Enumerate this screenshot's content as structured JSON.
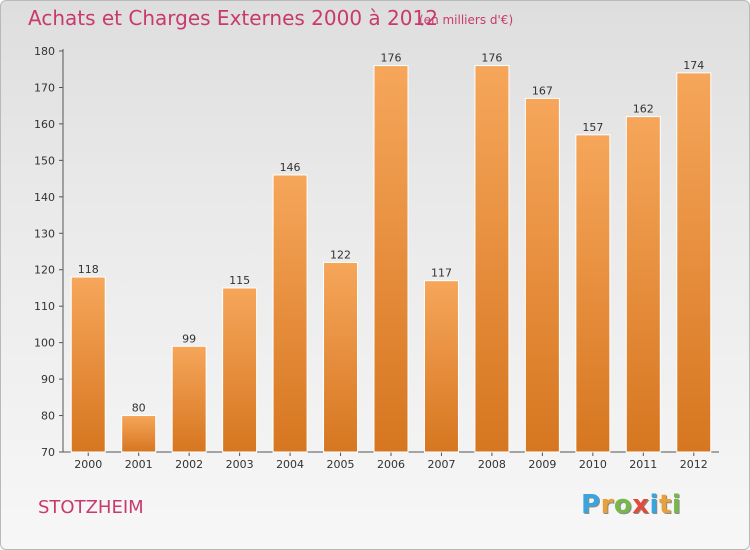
{
  "title": "Achats et Charges Externes 2000 à 2012",
  "subtitle": "(en milliers d'€)",
  "city": "STOTZHEIM",
  "logo": {
    "letters": [
      "P",
      "r",
      "o",
      "x",
      "i",
      "t",
      "i"
    ],
    "colors": [
      "#3aa4dc",
      "#e8a13a",
      "#78b84a",
      "#e04b3b",
      "#3aa4dc",
      "#e8a13a",
      "#78b84a"
    ]
  },
  "colors": {
    "title": "#c83a6e",
    "bar_top": "#f6a65a",
    "bar_bottom": "#d67620",
    "axis": "#555555"
  },
  "chart_data": {
    "type": "bar",
    "categories": [
      "2000",
      "2001",
      "2002",
      "2003",
      "2004",
      "2005",
      "2006",
      "2007",
      "2008",
      "2009",
      "2010",
      "2011",
      "2012"
    ],
    "values": [
      118,
      80,
      99,
      115,
      146,
      122,
      176,
      117,
      176,
      167,
      157,
      162,
      174
    ],
    "ylim": [
      70,
      180
    ],
    "yticks": [
      70,
      80,
      90,
      100,
      110,
      120,
      130,
      140,
      150,
      160,
      170,
      180
    ],
    "grid": false
  }
}
